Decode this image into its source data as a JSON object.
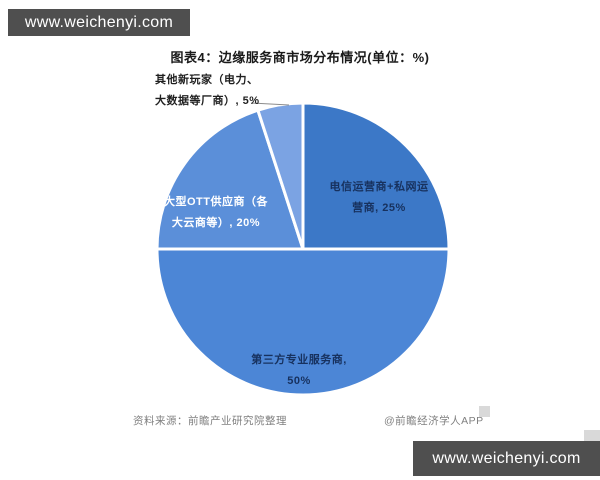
{
  "banners": {
    "top": "www.weichenyi.com",
    "bottom": "www.weichenyi.com"
  },
  "chart_data": {
    "type": "pie",
    "title": "图表4：边缘服务商市场分布情况(单位：%)",
    "unit": "%",
    "start_angle_deg": 0,
    "direction": "clockwise",
    "legend": "none",
    "label_style": "data-labels-on-slices",
    "slices": [
      {
        "id": "telecom",
        "label": "电信运营商+私网运营商",
        "value": 25,
        "color": "#3C78C7"
      },
      {
        "id": "third-party",
        "label": "第三方专业服务商",
        "value": 50,
        "color": "#4C86D6"
      },
      {
        "id": "ott",
        "label": "大型OTT供应商（各大云商等）",
        "value": 20,
        "color": "#5B8FD9"
      },
      {
        "id": "new-players",
        "label": "其他新玩家（电力、大数据等厂商）",
        "value": 5,
        "color": "#7BA3E3"
      }
    ],
    "slice_border_color": "#ffffff"
  },
  "slice_labels": {
    "telecom": {
      "line1": "电信运营商+私网运",
      "line2": "营商, 25%"
    },
    "third_party": {
      "line1": "第三方专业服务商,",
      "line2": "50%"
    },
    "ott": {
      "line1": "大型OTT供应商（各",
      "line2": "大云商等）, 20%"
    },
    "new_players": {
      "line1": "其他新玩家（电力、",
      "line2": "大数据等厂商）, 5%"
    }
  },
  "footer": {
    "source": "资料来源：前瞻产业研究院整理",
    "credit": "@前瞻经济学人APP"
  },
  "colors": {
    "banner_bg": "#4F4F4F",
    "label_dark": "#17315E",
    "label_light": "#FFFFFF",
    "footer_gray": "#808080",
    "leader_line": "#8C8C8C"
  }
}
